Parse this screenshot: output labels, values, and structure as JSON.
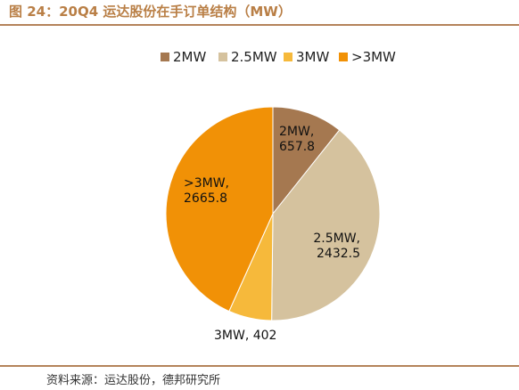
{
  "figure": {
    "title": "图 24：20Q4 运达股份在手订单结构（MW）",
    "source": "资料来源：运达股份，德邦研究所"
  },
  "colors": {
    "accent": "#b97f46",
    "rule": "#b4835a"
  },
  "chart_data": {
    "type": "pie",
    "title": "",
    "categories": [
      "2MW",
      "2.5MW",
      "3MW",
      ">3MW"
    ],
    "values": [
      657.8,
      2432.5,
      402,
      2665.8
    ],
    "colors": [
      "#a57850",
      "#d5c29e",
      "#f6b93b",
      "#f19106"
    ],
    "data_labels": [
      [
        "2MW,",
        "657.8"
      ],
      [
        "2.5MW,",
        "2432.5"
      ],
      [
        "3MW, 402"
      ],
      [
        ">3MW,",
        "2665.8"
      ]
    ],
    "legend": "top",
    "start_angle": "12 o'clock",
    "direction": "clockwise"
  }
}
